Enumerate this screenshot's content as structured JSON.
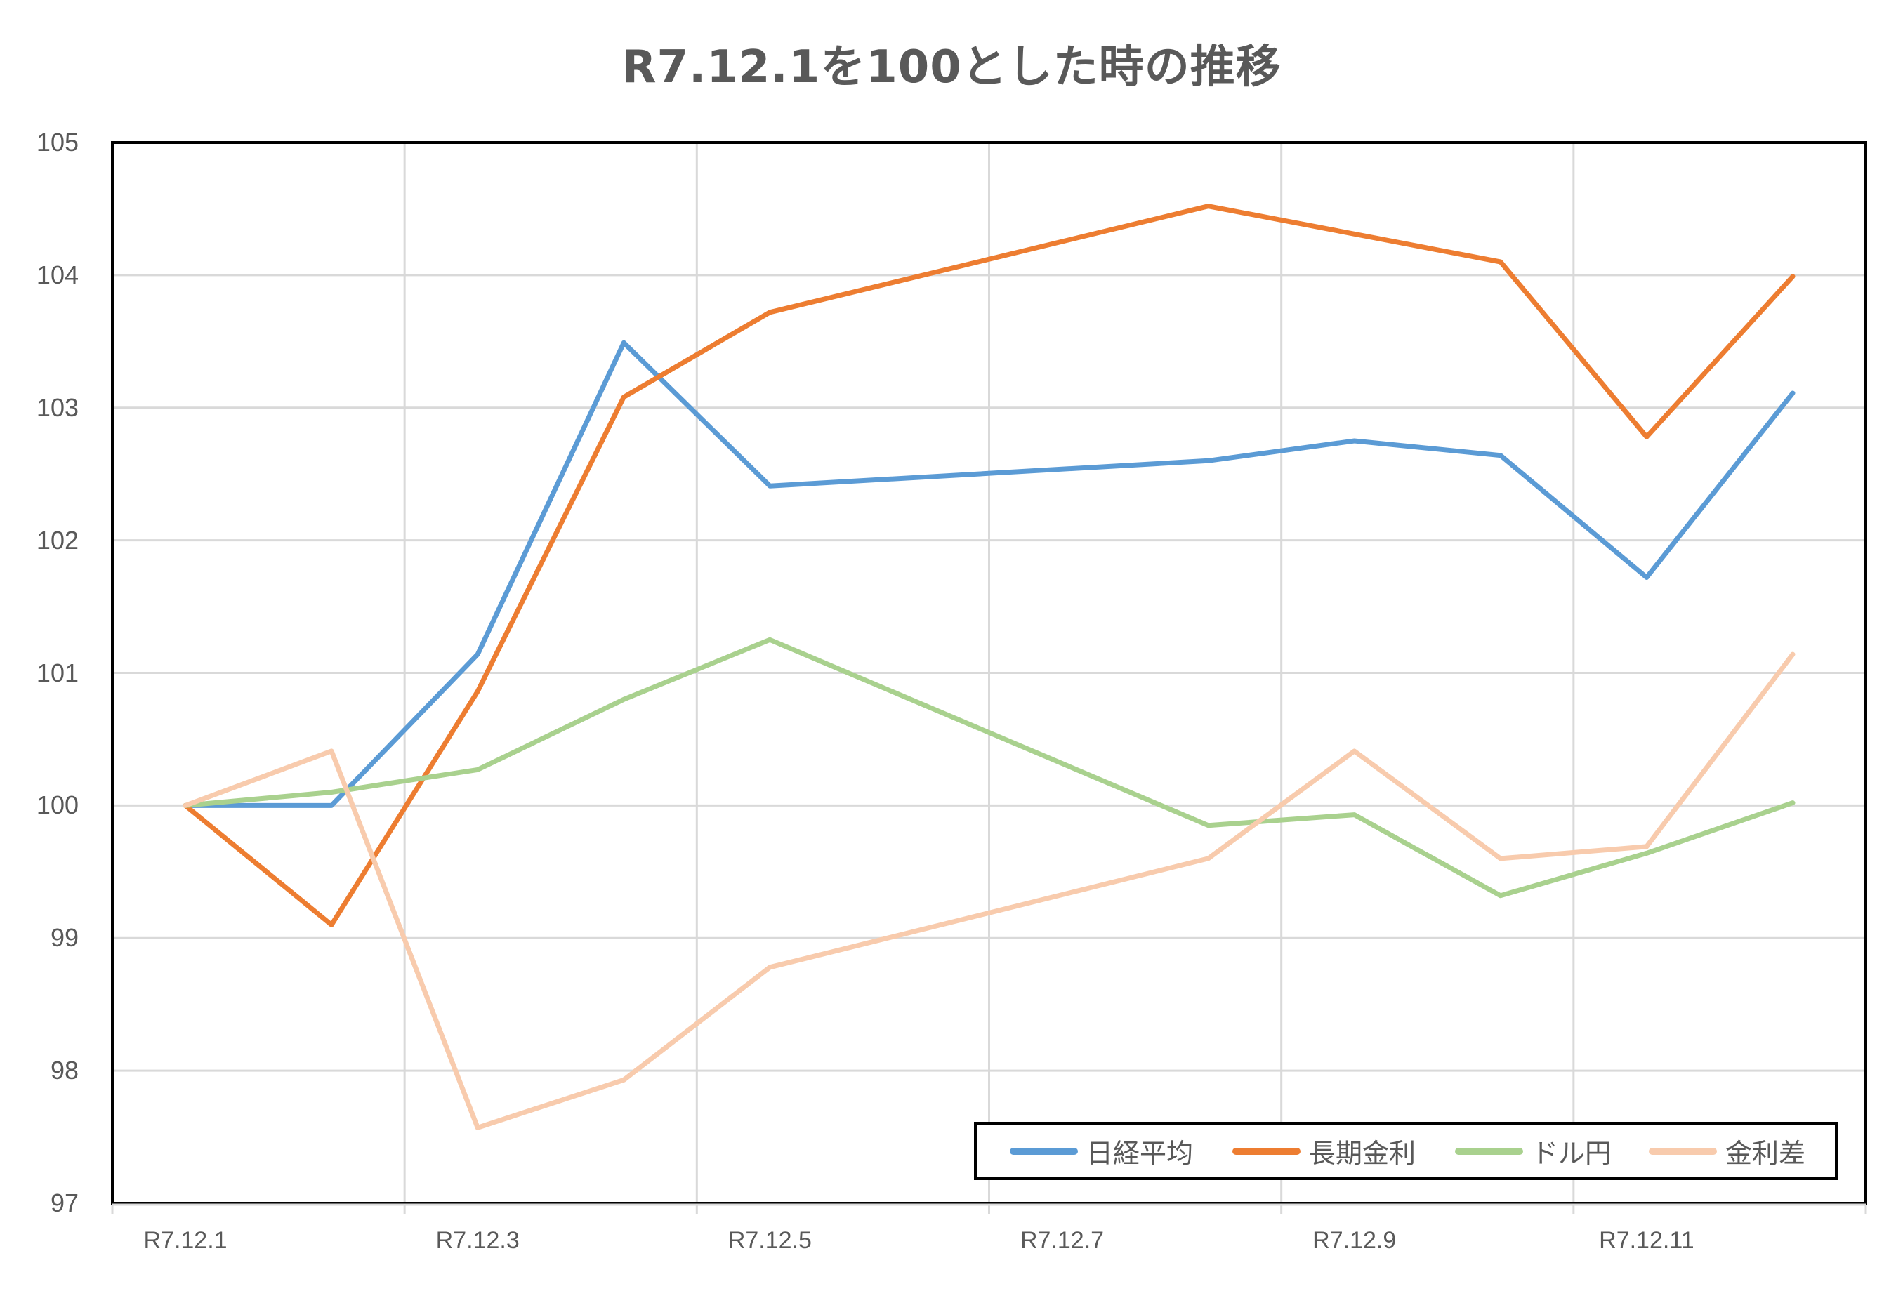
{
  "chart_data": {
    "type": "line",
    "title": "R7.12.1を100とした時の推移",
    "xlabel": "",
    "ylabel": "",
    "ylim": [
      97,
      105
    ],
    "yticks": [
      105,
      104,
      103,
      102,
      101,
      100,
      99,
      98,
      97
    ],
    "x": [
      "R7.12.1",
      "R7.12.2",
      "R7.12.3",
      "R7.12.4",
      "R7.12.5",
      "R7.12.6",
      "R7.12.7",
      "R7.12.8",
      "R7.12.9",
      "R7.12.10",
      "R7.12.11",
      "R7.12.12"
    ],
    "x_tick_labels": [
      "R7.12.1",
      "R7.12.3",
      "R7.12.5",
      "R7.12.7",
      "R7.12.9",
      "R7.12.11"
    ],
    "grid": true,
    "legend_position": "bottom-right inside",
    "series": [
      {
        "name": "日経平均",
        "color": "#5B9BD5",
        "values": [
          100,
          100.0,
          101.14,
          103.49,
          102.41,
          null,
          null,
          102.6,
          102.75,
          102.64,
          101.72,
          103.11
        ]
      },
      {
        "name": "長期金利",
        "color": "#ED7D31",
        "values": [
          100,
          99.1,
          100.86,
          103.08,
          103.72,
          null,
          null,
          104.52,
          104.31,
          104.1,
          102.78,
          103.99
        ]
      },
      {
        "name": "ドル円",
        "color": "#A9D18E",
        "values": [
          100,
          100.1,
          100.27,
          100.8,
          101.25,
          null,
          null,
          99.85,
          99.93,
          99.32,
          99.64,
          100.02
        ]
      },
      {
        "name": "金利差",
        "color": "#F8CBAD",
        "values": [
          100,
          100.41,
          97.57,
          97.93,
          98.78,
          null,
          null,
          99.6,
          100.41,
          99.6,
          99.69,
          101.14
        ]
      }
    ]
  },
  "title": "R7.12.1を100とした時の推移",
  "y_axis": {
    "labels": [
      "105",
      "104",
      "103",
      "102",
      "101",
      "100",
      "99",
      "98",
      "97"
    ]
  },
  "x_axis": {
    "labels": [
      "R7.12.1",
      "R7.12.3",
      "R7.12.5",
      "R7.12.7",
      "R7.12.9",
      "R7.12.11"
    ]
  },
  "legend": {
    "items": [
      {
        "label": "日経平均",
        "color": "#5B9BD5"
      },
      {
        "label": "長期金利",
        "color": "#ED7D31"
      },
      {
        "label": "ドル円",
        "color": "#A9D18E"
      },
      {
        "label": "金利差",
        "color": "#F8CBAD"
      }
    ]
  }
}
